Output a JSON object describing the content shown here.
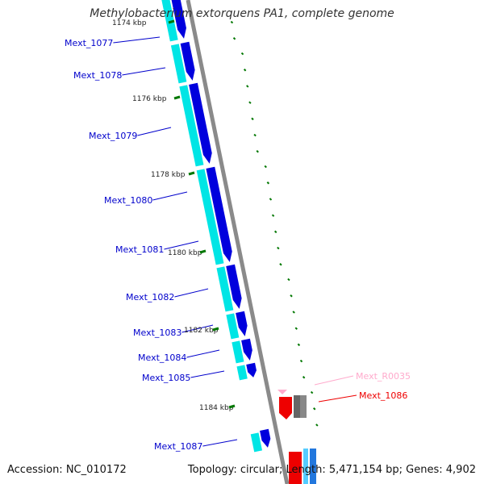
{
  "title": "Methylobacterium extorquens PA1, complete genome",
  "accession": "Accession: NC_010172",
  "summary": "Topology: circular; Length: 5,471,154 bp; Genes: 4,902",
  "colors": {
    "backbone": "#8a8a8a",
    "cds": "#0000dd",
    "cds_inner": "#00e5e5",
    "rna_pink": "#ffaacc",
    "highlight_red": "#ee0000",
    "gc_green": "#007700"
  },
  "genes": [
    {
      "name": "Mext_1077",
      "color": "#0000cc"
    },
    {
      "name": "Mext_1078",
      "color": "#0000cc"
    },
    {
      "name": "Mext_1079",
      "color": "#0000cc"
    },
    {
      "name": "Mext_1080",
      "color": "#0000cc"
    },
    {
      "name": "Mext_1081",
      "color": "#0000cc"
    },
    {
      "name": "Mext_1082",
      "color": "#0000cc"
    },
    {
      "name": "Mext_1083",
      "color": "#0000cc"
    },
    {
      "name": "Mext_1084",
      "color": "#0000cc"
    },
    {
      "name": "Mext_1085",
      "color": "#0000cc"
    },
    {
      "name": "Mext_R0035",
      "color": "#ffaacc"
    },
    {
      "name": "Mext_1086",
      "color": "#ee0000"
    },
    {
      "name": "Mext_1087",
      "color": "#0000cc"
    }
  ],
  "scale_labels": [
    "1174 kbp",
    "1176 kbp",
    "1178 kbp",
    "1180 kbp",
    "1182 kbp",
    "1184 kbp"
  ]
}
